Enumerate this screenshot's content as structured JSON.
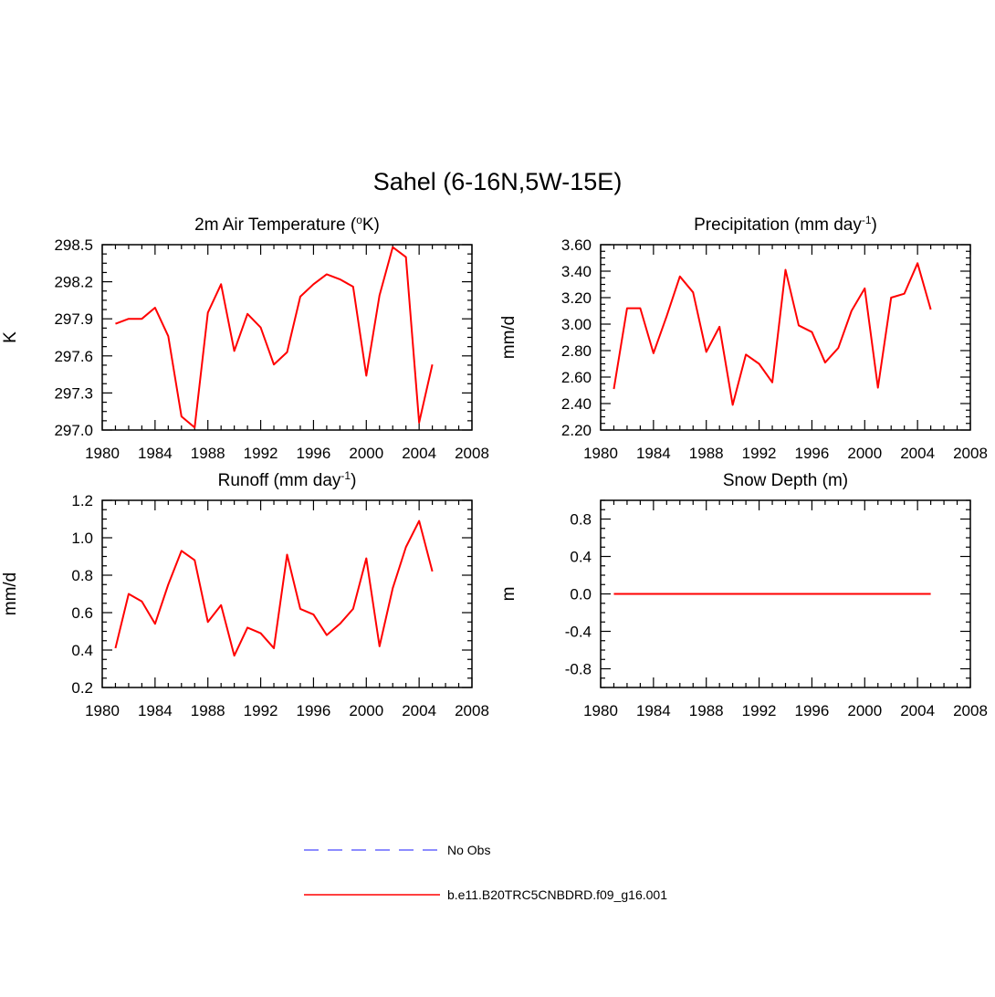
{
  "figure": {
    "title": "Sahel (6-16N,5W-15E)"
  },
  "legend": {
    "entries": [
      {
        "label": "No Obs",
        "color": "#6666ff",
        "style": "dashed"
      },
      {
        "label": "b.e11.B20TRC5CNBDRD.f09_g16.001",
        "color": "#ff0000",
        "style": "solid"
      }
    ]
  },
  "chart_data": [
    {
      "type": "line",
      "panel": "top-left",
      "title": "2m Air Temperature (",
      "title_superscript": "o",
      "title_suffix": "K)",
      "ylabel": "K",
      "xlabel": "",
      "xlim": [
        1980,
        2008
      ],
      "ylim": [
        297.0,
        298.5
      ],
      "xticks": [
        1980,
        1984,
        1988,
        1992,
        1996,
        2000,
        2004,
        2008
      ],
      "yticks": [
        297.0,
        297.3,
        297.6,
        297.9,
        298.2,
        298.5
      ],
      "ytick_labels": [
        "297.0",
        "297.3",
        "297.6",
        "297.9",
        "298.2",
        "298.5"
      ],
      "series": [
        {
          "name": "b.e11.B20TRC5CNBDRD.f09_g16.001",
          "color": "#ff0000",
          "x": [
            1981,
            1982,
            1983,
            1984,
            1985,
            1986,
            1987,
            1988,
            1989,
            1990,
            1991,
            1992,
            1993,
            1994,
            1995,
            1996,
            1997,
            1998,
            1999,
            2000,
            2001,
            2002,
            2003,
            2004,
            2005
          ],
          "values": [
            297.86,
            297.9,
            297.9,
            297.99,
            297.76,
            297.11,
            297.02,
            297.95,
            298.18,
            297.64,
            297.94,
            297.83,
            297.53,
            297.63,
            298.08,
            298.18,
            298.26,
            298.22,
            298.16,
            297.44,
            298.09,
            298.48,
            298.4,
            297.06,
            297.53
          ]
        }
      ]
    },
    {
      "type": "line",
      "panel": "top-right",
      "title": "Precipitation (mm day",
      "title_superscript": "-1",
      "title_suffix": ")",
      "ylabel": "mm/d",
      "xlabel": "",
      "xlim": [
        1980,
        2008
      ],
      "ylim": [
        2.2,
        3.6
      ],
      "xticks": [
        1980,
        1984,
        1988,
        1992,
        1996,
        2000,
        2004,
        2008
      ],
      "yticks": [
        2.2,
        2.4,
        2.6,
        2.8,
        3.0,
        3.2,
        3.4,
        3.6
      ],
      "ytick_labels": [
        "2.20",
        "2.40",
        "2.60",
        "2.80",
        "3.00",
        "3.20",
        "3.40",
        "3.60"
      ],
      "series": [
        {
          "name": "b.e11.B20TRC5CNBDRD.f09_g16.001",
          "color": "#ff0000",
          "x": [
            1981,
            1982,
            1983,
            1984,
            1985,
            1986,
            1987,
            1988,
            1989,
            1990,
            1991,
            1992,
            1993,
            1994,
            1995,
            1996,
            1997,
            1998,
            1999,
            2000,
            2001,
            2002,
            2003,
            2004,
            2005
          ],
          "values": [
            2.51,
            3.12,
            3.12,
            2.78,
            3.06,
            3.36,
            3.24,
            2.79,
            2.98,
            2.39,
            2.77,
            2.7,
            2.56,
            3.41,
            2.99,
            2.94,
            2.71,
            2.82,
            3.1,
            3.27,
            2.52,
            3.2,
            3.23,
            3.46,
            3.11
          ]
        }
      ]
    },
    {
      "type": "line",
      "panel": "bottom-left",
      "title": "Runoff (mm day",
      "title_superscript": "-1",
      "title_suffix": ")",
      "ylabel": "mm/d",
      "xlabel": "",
      "xlim": [
        1980,
        2008
      ],
      "ylim": [
        0.2,
        1.2
      ],
      "xticks": [
        1980,
        1984,
        1988,
        1992,
        1996,
        2000,
        2004,
        2008
      ],
      "yticks": [
        0.2,
        0.4,
        0.6,
        0.8,
        1.0,
        1.2
      ],
      "ytick_labels": [
        "0.2",
        "0.4",
        "0.6",
        "0.8",
        "1.0",
        "1.2"
      ],
      "series": [
        {
          "name": "b.e11.B20TRC5CNBDRD.f09_g16.001",
          "color": "#ff0000",
          "x": [
            1981,
            1982,
            1983,
            1984,
            1985,
            1986,
            1987,
            1988,
            1989,
            1990,
            1991,
            1992,
            1993,
            1994,
            1995,
            1996,
            1997,
            1998,
            1999,
            2000,
            2001,
            2002,
            2003,
            2004,
            2005
          ],
          "values": [
            0.41,
            0.7,
            0.66,
            0.54,
            0.75,
            0.93,
            0.88,
            0.55,
            0.64,
            0.37,
            0.52,
            0.49,
            0.41,
            0.91,
            0.62,
            0.59,
            0.48,
            0.54,
            0.62,
            0.89,
            0.42,
            0.73,
            0.95,
            1.09,
            0.82
          ]
        }
      ]
    },
    {
      "type": "line",
      "panel": "bottom-right",
      "title": "Snow Depth (m)",
      "title_superscript": "",
      "title_suffix": "",
      "ylabel": "m",
      "xlabel": "",
      "xlim": [
        1980,
        2008
      ],
      "ylim": [
        -1.0,
        1.0
      ],
      "xticks": [
        1980,
        1984,
        1988,
        1992,
        1996,
        2000,
        2004,
        2008
      ],
      "yticks": [
        -0.8,
        -0.4,
        0.0,
        0.4,
        0.8
      ],
      "ytick_labels": [
        "-0.8",
        "-0.4",
        "0.0",
        "0.4",
        "0.8"
      ],
      "series": [
        {
          "name": "b.e11.B20TRC5CNBDRD.f09_g16.001",
          "color": "#ff0000",
          "x": [
            1981,
            1982,
            1983,
            1984,
            1985,
            1986,
            1987,
            1988,
            1989,
            1990,
            1991,
            1992,
            1993,
            1994,
            1995,
            1996,
            1997,
            1998,
            1999,
            2000,
            2001,
            2002,
            2003,
            2004,
            2005
          ],
          "values": [
            0,
            0,
            0,
            0,
            0,
            0,
            0,
            0,
            0,
            0,
            0,
            0,
            0,
            0,
            0,
            0,
            0,
            0,
            0,
            0,
            0,
            0,
            0,
            0,
            0
          ]
        }
      ]
    }
  ]
}
